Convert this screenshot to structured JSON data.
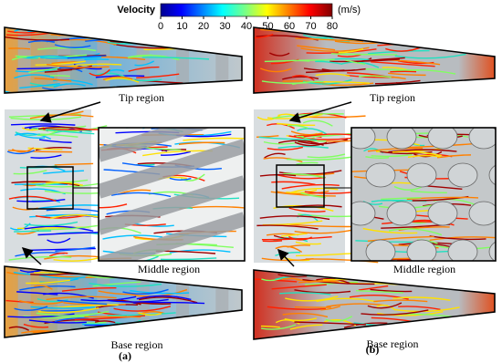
{
  "colorbar": {
    "label": "Velocity",
    "unit": "(m/s)",
    "lim": [
      0,
      80
    ],
    "ticks": [
      0,
      10,
      20,
      30,
      40,
      50,
      60,
      70,
      80
    ]
  },
  "panels": [
    {
      "label": "(a)",
      "tip": "Tip region",
      "middle": "Middle region",
      "base": "Base region"
    },
    {
      "label": "(b)",
      "tip": "Tip region",
      "middle": "Middle region",
      "base": "Base region"
    }
  ]
}
